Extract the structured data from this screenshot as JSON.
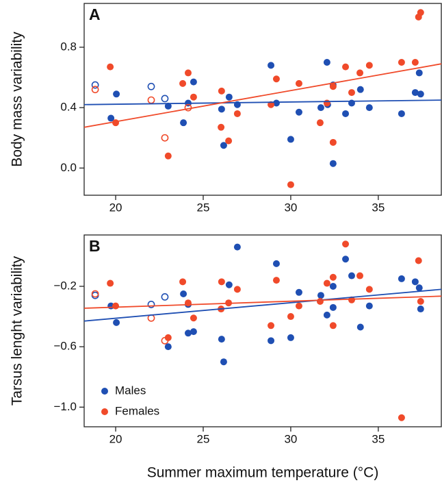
{
  "chart_data": [
    {
      "type": "scatter",
      "panel_label": "A",
      "ylabel": "Body mass variability",
      "xlim": [
        18.2,
        38.6
      ],
      "ylim": [
        -0.18,
        1.09
      ],
      "xticks": [
        20,
        25,
        30,
        35
      ],
      "yticks": [
        {
          "value": 0,
          "label": "0.0"
        },
        0.4,
        0.8
      ],
      "series": [
        {
          "color": "#1f4fb3",
          "marker": "filled",
          "x": [
            19.73,
            20.04,
            23.0,
            23.87,
            24.14,
            24.45,
            26.05,
            26.17,
            26.48,
            26.95,
            28.87,
            29.18,
            30.0,
            30.47,
            31.72,
            32.07,
            32.11,
            32.42,
            32.42,
            33.13,
            33.48,
            33.98,
            34.49,
            36.33,
            37.11,
            37.34,
            37.42
          ],
          "values": [
            0.33,
            0.49,
            0.41,
            0.3,
            0.43,
            0.57,
            0.39,
            0.15,
            0.47,
            0.42,
            0.68,
            0.43,
            0.19,
            0.37,
            0.4,
            0.7,
            0.42,
            0.55,
            0.03,
            0.36,
            0.43,
            0.52,
            0.4,
            0.36,
            0.5,
            0.63,
            0.49
          ]
        },
        {
          "color": "#f04a2a",
          "marker": "filled",
          "x": [
            19.69,
            20.0,
            23.0,
            23.83,
            24.14,
            24.45,
            26.05,
            26.02,
            26.45,
            26.95,
            28.87,
            29.18,
            30.0,
            30.47,
            31.68,
            32.07,
            32.42,
            32.42,
            33.13,
            33.48,
            33.95,
            34.49,
            36.33,
            37.11,
            37.3,
            37.42
          ],
          "values": [
            0.67,
            0.3,
            0.08,
            0.56,
            0.63,
            0.47,
            0.51,
            0.27,
            0.18,
            0.36,
            0.42,
            0.59,
            -0.11,
            0.56,
            0.3,
            0.43,
            0.54,
            0.17,
            0.67,
            0.5,
            0.63,
            0.68,
            0.7,
            0.7,
            1.0,
            1.03
          ]
        },
        {
          "color": "#1f4fb3",
          "marker": "open",
          "x": [
            18.83,
            22.03,
            22.81
          ],
          "values": [
            0.55,
            0.54,
            0.46
          ]
        },
        {
          "color": "#f04a2a",
          "marker": "open",
          "x": [
            18.83,
            22.03,
            22.81,
            24.14
          ],
          "values": [
            0.52,
            0.45,
            0.2,
            0.4
          ]
        }
      ],
      "lines": [
        {
          "color": "#1f4fb3",
          "x": [
            18.2,
            38.6
          ],
          "values": [
            0.42,
            0.45
          ]
        },
        {
          "color": "#f04a2a",
          "x": [
            18.2,
            38.6
          ],
          "values": [
            0.27,
            0.69
          ]
        }
      ]
    },
    {
      "type": "scatter",
      "panel_label": "B",
      "ylabel": "Tarsus lenght variability",
      "xlabel": "Summer maximum temperature (°C)",
      "xlim": [
        18.2,
        38.6
      ],
      "ylim": [
        -1.13,
        0.14
      ],
      "xticks": [
        20,
        25,
        30,
        35
      ],
      "yticks": [
        {
          "value": -1.0,
          "label": "−1.0"
        },
        {
          "value": -0.6,
          "label": "−0.6"
        },
        {
          "value": -0.2,
          "label": "−0.2"
        }
      ],
      "legend": "lower left",
      "series": [
        {
          "name": "Males",
          "color": "#1f4fb3",
          "marker": "filled",
          "x": [
            19.73,
            20.04,
            23.0,
            23.87,
            24.14,
            24.14,
            24.45,
            26.05,
            26.17,
            26.48,
            26.95,
            28.87,
            29.18,
            30.0,
            30.47,
            31.72,
            32.07,
            32.42,
            32.42,
            33.13,
            33.48,
            33.98,
            34.49,
            36.33,
            37.11,
            37.34,
            37.42
          ],
          "values": [
            -0.33,
            -0.44,
            -0.6,
            -0.25,
            -0.32,
            -0.51,
            -0.5,
            -0.55,
            -0.7,
            -0.19,
            0.06,
            -0.56,
            -0.05,
            -0.54,
            -0.24,
            -0.26,
            -0.39,
            -0.2,
            -0.34,
            -0.02,
            -0.13,
            -0.47,
            -0.33,
            -0.15,
            -0.17,
            -0.21,
            -0.35
          ]
        },
        {
          "name": "Females",
          "color": "#f04a2a",
          "marker": "filled",
          "x": [
            19.69,
            20.0,
            23.0,
            23.83,
            24.14,
            24.45,
            26.05,
            26.02,
            26.45,
            26.95,
            28.87,
            29.18,
            30.0,
            30.47,
            31.68,
            32.07,
            32.42,
            32.42,
            33.13,
            33.48,
            33.95,
            34.49,
            36.33,
            37.3,
            37.42
          ],
          "values": [
            -0.18,
            -0.33,
            -0.54,
            -0.17,
            -0.31,
            -0.41,
            -0.17,
            -0.35,
            -0.31,
            -0.22,
            -0.46,
            -0.16,
            -0.4,
            -0.33,
            -0.3,
            -0.18,
            -0.14,
            -0.46,
            0.08,
            -0.29,
            -0.13,
            -0.22,
            -1.07,
            -0.03,
            -0.3
          ]
        },
        {
          "color": "#1f4fb3",
          "marker": "open",
          "x": [
            18.83,
            22.03,
            22.81
          ],
          "values": [
            -0.26,
            -0.32,
            -0.27
          ]
        },
        {
          "color": "#f04a2a",
          "marker": "open",
          "x": [
            18.83,
            22.03,
            22.81
          ],
          "values": [
            -0.25,
            -0.41,
            -0.56
          ]
        }
      ],
      "lines": [
        {
          "color": "#1f4fb3",
          "x": [
            18.2,
            38.6
          ],
          "values": [
            -0.43,
            -0.22
          ]
        },
        {
          "color": "#f04a2a",
          "x": [
            18.2,
            38.6
          ],
          "values": [
            -0.345,
            -0.265
          ]
        }
      ]
    }
  ]
}
